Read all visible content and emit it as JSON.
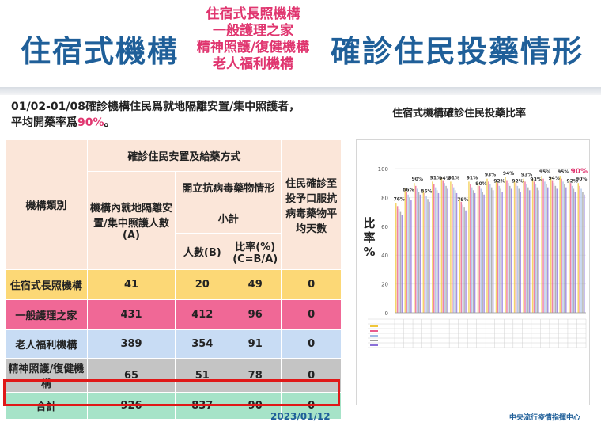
{
  "header": {
    "left_title": "住宿式機構",
    "middle_lines": [
      "住宿式長照機構",
      "一般護理之家",
      "精神照護/復健機構",
      "老人福利機構"
    ],
    "right_title": "確診住民投藥情形"
  },
  "intro": {
    "line1": "01/02-01/08確診機構住民爲就地隔離安置/集中照護者，",
    "line2_prefix": "平均開藥率爲",
    "line2_rate": "90%",
    "line2_suffix": "。"
  },
  "table": {
    "head": {
      "category": "機構類別",
      "group": "確診住民安置及給藥方式",
      "col_a": "機構內就地隔離安置/集中照護人數(A)",
      "antiviral": "開立抗病毒藥物情形",
      "subtotal": "小計",
      "col_b": "人數(B)",
      "col_c": "比率(%)(C=B/A)",
      "col_days": "住民確診至投予口服抗病毒藥物平均天數"
    },
    "rows": [
      {
        "name": "住宿式長照機構",
        "a": "41",
        "b": "20",
        "c": "49",
        "days": "0"
      },
      {
        "name": "一般護理之家",
        "a": "431",
        "b": "412",
        "c": "96",
        "days": "0"
      },
      {
        "name": "老人福利機構",
        "a": "389",
        "b": "354",
        "c": "91",
        "days": "0"
      },
      {
        "name": "精神照護/復健機構",
        "a": "65",
        "b": "51",
        "c": "78",
        "days": "0"
      },
      {
        "name": "合計",
        "a": "926",
        "b": "837",
        "c": "90",
        "days": "0"
      }
    ]
  },
  "chart_title": "住宿式機構確診住民投藥比率",
  "chart_data": {
    "type": "bar",
    "ylabel": "比率%",
    "ylim": [
      0,
      100
    ],
    "yticks": [
      0,
      20,
      40,
      60,
      80,
      100
    ],
    "annotations": [
      "76%",
      "86%",
      "90%",
      "85%",
      "91%",
      "94%",
      "91%",
      "79%",
      "91%",
      "90%",
      "93%",
      "92%",
      "94%",
      "92%",
      "93%",
      "93%",
      "95%",
      "94%",
      "95%",
      "92%",
      "90%"
    ],
    "final_label": "90%",
    "final_label_color": "#e0356f",
    "series_colors": [
      "#f0c73a",
      "#e85a8c",
      "#9fb9e6",
      "#9a9a9a",
      "#8a6fd8"
    ]
  },
  "footer": {
    "date": "2023/01/12",
    "org": "中央流行疫情指揮中心"
  }
}
